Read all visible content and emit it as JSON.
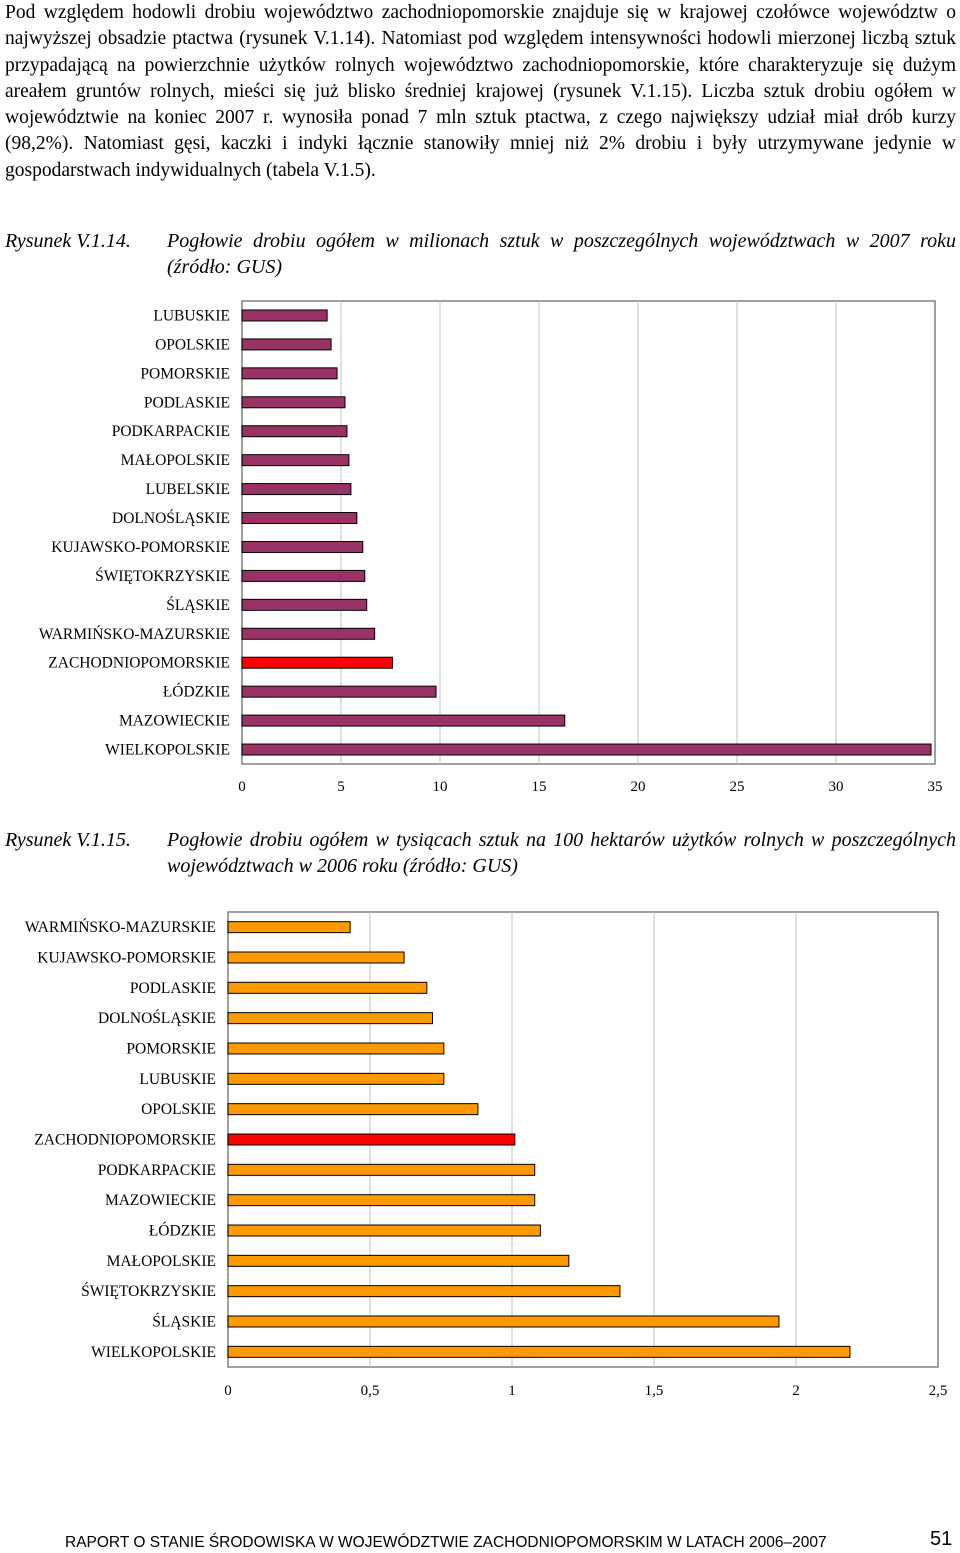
{
  "paragraph": "Pod względem hodowli drobiu województwo zachodniopomorskie znajduje się w krajowej czołówce województw o najwyższej obsadzie ptactwa (rysunek V.1.14). Natomiast pod względem intensywności hodowli mierzonej liczbą sztuk przypadającą na powierzchnie użytków rolnych województwo zachodniopomorskie, które charakteryzuje się dużym areałem gruntów rolnych, mieści się już blisko średniej krajowej (rysunek V.1.15). Liczba sztuk drobiu ogółem w województwie na koniec 2007 r. wynosiła ponad 7 mln sztuk ptactwa, z czego największy udział miał drób kurzy (98,2%). Natomiast gęsi, kaczki i indyki łącznie stanowiły mniej niż 2% drobiu i były utrzymywane jedynie w gospodarstwach indywidualnych (tabela V.1.5).",
  "figure1": {
    "number": "Rysunek V.1.14.",
    "caption": "Pogłowie drobiu ogółem w milionach sztuk w poszczególnych województwach w 2007 roku (źródło: GUS)"
  },
  "figure2": {
    "number": "Rysunek V.1.15.",
    "caption": "Pogłowie drobiu ogółem w tysiącach sztuk na 100 hektarów użytków rolnych w poszczególnych województwach w 2006 roku (źródło: GUS)"
  },
  "chart_data": [
    {
      "type": "bar",
      "orientation": "horizontal",
      "categories": [
        "LUBUSKIE",
        "OPOLSKIE",
        "POMORSKIE",
        "PODLASKIE",
        "PODKARPACKIE",
        "MAŁOPOLSKIE",
        "LUBELSKIE",
        "DOLNOŚLĄSKIE",
        "KUJAWSKO-POMORSKIE",
        "ŚWIĘTOKRZYSKIE",
        "ŚLĄSKIE",
        "WARMIŃSKO-MAZURSKIE",
        "ZACHODNIOPOMORSKIE",
        "ŁÓDZKIE",
        "MAZOWIECKIE",
        "WIELKOPOLSKIE"
      ],
      "values": [
        4.3,
        4.5,
        4.8,
        5.2,
        5.3,
        5.4,
        5.5,
        5.8,
        6.1,
        6.2,
        6.3,
        6.7,
        7.6,
        9.8,
        16.3,
        34.8
      ],
      "highlight": "ZACHODNIOPOMORSKIE",
      "xlim": [
        0,
        35
      ],
      "xticks": [
        "0",
        "5",
        "10",
        "15",
        "20",
        "25",
        "30",
        "35"
      ],
      "grid": "vertical",
      "colors": {
        "bar": "#993366",
        "highlight": "#ff0000"
      }
    },
    {
      "type": "bar",
      "orientation": "horizontal",
      "categories": [
        "WARMIŃSKO-MAZURSKIE",
        "KUJAWSKO-POMORSKIE",
        "PODLASKIE",
        "DOLNOŚLĄSKIE",
        "POMORSKIE",
        "LUBUSKIE",
        "OPOLSKIE",
        "ZACHODNIOPOMORSKIE",
        "PODKARPACKIE",
        "MAZOWIECKIE",
        "ŁÓDZKIE",
        "MAŁOPOLSKIE",
        "ŚWIĘTOKRZYSKIE",
        "ŚLĄSKIE",
        "WIELKOPOLSKIE"
      ],
      "values": [
        0.43,
        0.62,
        0.7,
        0.72,
        0.76,
        0.76,
        0.88,
        1.01,
        1.08,
        1.08,
        1.1,
        1.2,
        1.38,
        1.94,
        2.19
      ],
      "highlight": "ZACHODNIOPOMORSKIE",
      "xlim": [
        0,
        2.5
      ],
      "xticks": [
        "0",
        "0,5",
        "1",
        "1,5",
        "2",
        "2,5"
      ],
      "grid": "vertical",
      "colors": {
        "bar": "#ff9900",
        "highlight": "#ff0000"
      }
    }
  ],
  "footer": {
    "title": "RAPORT O STANIE ŚRODOWISKA W WOJEWÓDZTWIE ZACHODNIOPOMORSKIM W LATACH 2006–2007",
    "page": "51"
  }
}
